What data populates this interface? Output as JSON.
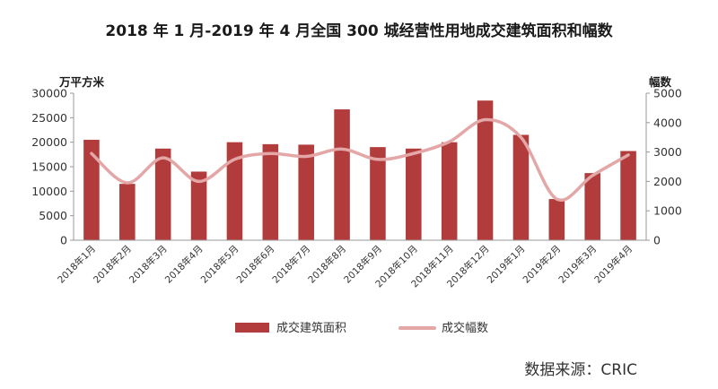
{
  "chart_data": {
    "type": "bar",
    "title": "2018 年 1 月-2019 年 4 月全国 300 城经营性用地成交建筑面积和幅数",
    "ylabel_left": "万平方米",
    "ylabel_right": "幅数",
    "source": "数据来源：CRIC",
    "categories": [
      "2018年1月",
      "2018年2月",
      "2018年3月",
      "2018年4月",
      "2018年5月",
      "2018年6月",
      "2018年7月",
      "2018年8月",
      "2018年9月",
      "2018年10月",
      "2018年11月",
      "2018年12月",
      "2019年1月",
      "2019年2月",
      "2019年3月",
      "2019年4月"
    ],
    "ylim_left": [
      0,
      30000
    ],
    "yticks_left": [
      "0",
      "5000",
      "10000",
      "15000",
      "20000",
      "25000",
      "30000"
    ],
    "ylim_right": [
      0,
      5000
    ],
    "yticks_right": [
      "0",
      "1000",
      "2000",
      "3000",
      "4000",
      "5000"
    ],
    "grid": false,
    "legend_position": "bottom",
    "series": [
      {
        "name": "成交建筑面积",
        "type": "bar",
        "axis": "left",
        "color": "#b23b3b",
        "values": [
          20500,
          11500,
          18700,
          14000,
          20000,
          19600,
          19500,
          26700,
          19000,
          18700,
          20000,
          28500,
          21500,
          8400,
          13700,
          18200
        ]
      },
      {
        "name": "成交幅数",
        "type": "line",
        "axis": "right",
        "color": "#e3a7a7",
        "values": [
          2950,
          1950,
          2800,
          2000,
          2750,
          2950,
          2850,
          3100,
          2750,
          2950,
          3350,
          4100,
          3500,
          1400,
          2200,
          2900
        ]
      }
    ]
  }
}
